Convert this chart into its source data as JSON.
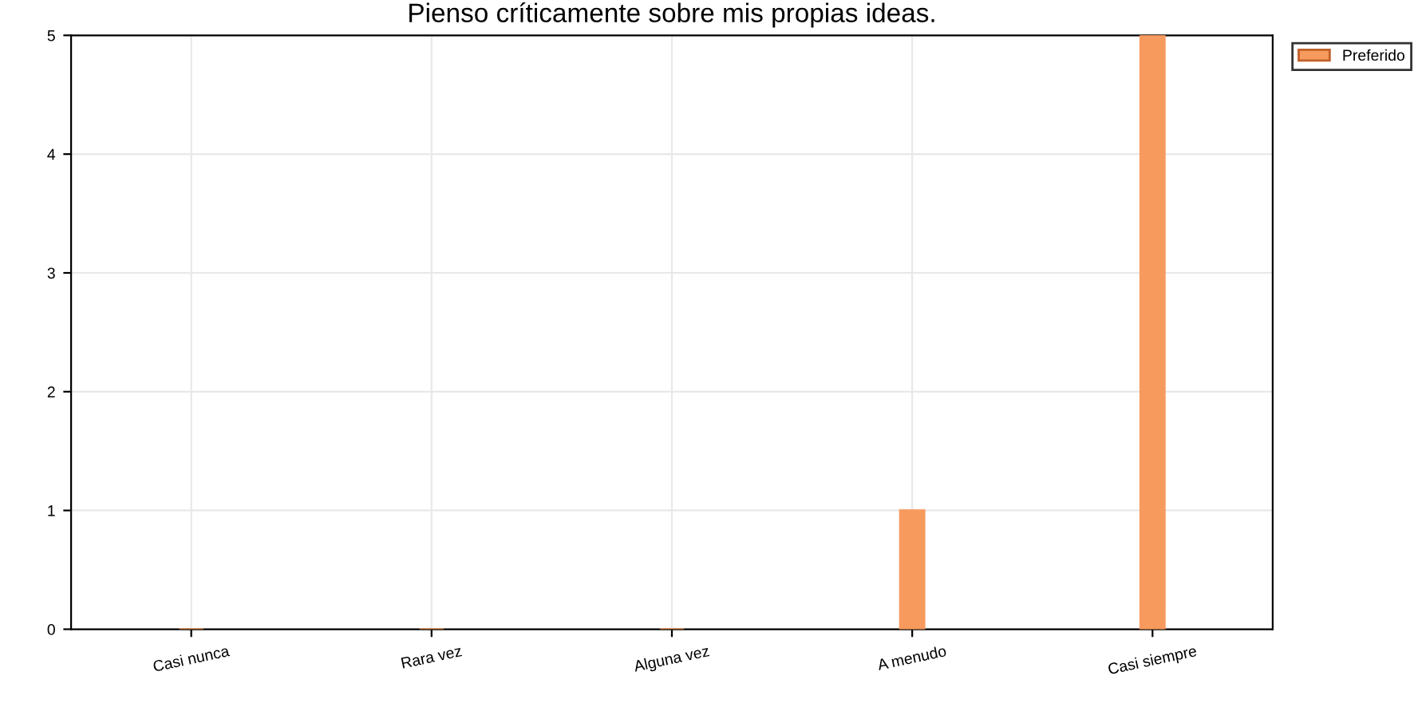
{
  "chart_data": {
    "type": "bar",
    "title": "Pienso críticamente sobre mis propias ideas.",
    "categories": [
      "Casi nunca",
      "Rara vez",
      "Alguna vez",
      "A menudo",
      "Casi siempre"
    ],
    "series": [
      {
        "name": "Preferido",
        "color": "#f79a5e",
        "values": [
          0,
          0,
          0,
          1,
          5
        ]
      }
    ],
    "ylim": [
      0,
      5
    ],
    "yticks": [
      0,
      1,
      2,
      3,
      4,
      5
    ],
    "grid": true,
    "legend": "top right"
  }
}
